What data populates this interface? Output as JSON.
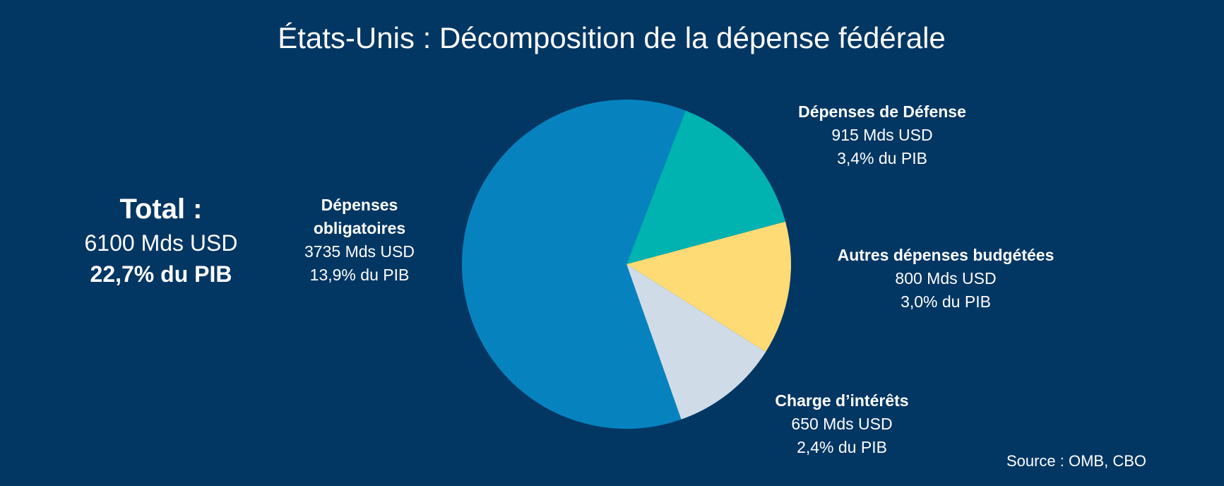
{
  "chart_data": {
    "type": "pie",
    "title": "États-Unis : Décomposition de la dépense fédérale",
    "unit": "Mds USD",
    "start_angle_deg": 21,
    "slices": [
      {
        "name": "Dépenses de Défense",
        "value": 915,
        "value_label": "915 Mds USD",
        "pib": "3,4% du PIB",
        "color": "#00B2B0"
      },
      {
        "name": "Autres dépenses budgétées",
        "value": 800,
        "value_label": "800 Mds USD",
        "pib": "3,0% du PIB",
        "color": "#FEDB75"
      },
      {
        "name": "Charge d’intérêts",
        "value": 650,
        "value_label": "650 Mds USD",
        "pib": "2,4% du PIB",
        "color": "#CFDCE7"
      },
      {
        "name": "Dépenses obligatoires",
        "name_lines": [
          "Dépenses",
          "obligatoires"
        ],
        "value": 3735,
        "value_label": "3735 Mds USD",
        "pib": "13,9% du PIB",
        "color": "#0683BF"
      }
    ],
    "total": {
      "label": "Total :",
      "value": "6100 Mds USD",
      "pib": "22,7% du PIB"
    },
    "source": "Source : OMB, CBO"
  }
}
